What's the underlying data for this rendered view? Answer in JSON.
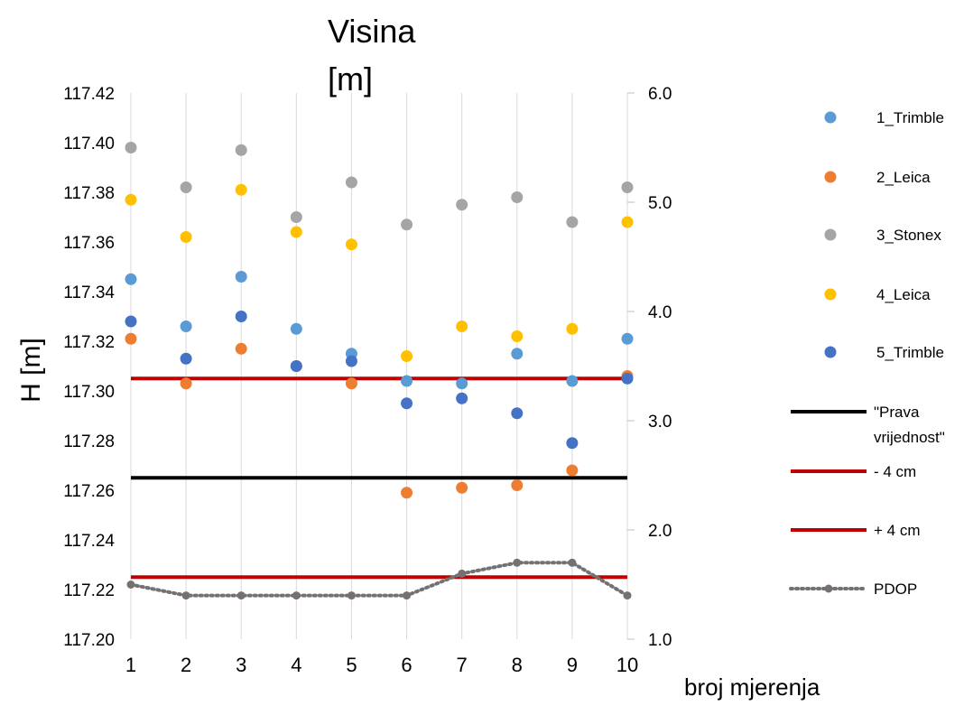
{
  "chart_data": {
    "type": "scatter",
    "title": "Visina [m]",
    "xlabel": "broj mjerenja",
    "ylabel": "H [m]",
    "x": [
      1,
      2,
      3,
      4,
      5,
      6,
      7,
      8,
      9,
      10
    ],
    "xlim": [
      1,
      10
    ],
    "ylim": [
      117.2,
      117.42
    ],
    "y_ticks": [
      "117.42",
      "117.40",
      "117.38",
      "117.36",
      "117.34",
      "117.32",
      "117.30",
      "117.28",
      "117.26",
      "117.24",
      "117.22",
      "117.20"
    ],
    "y2lim": [
      1.0,
      6.0
    ],
    "y2_ticks": [
      "6.0",
      "5.0",
      "4.0",
      "3.0",
      "2.0",
      "1.0"
    ],
    "grid": "vertical",
    "legend_position": "right",
    "series": [
      {
        "name": "1_Trimble",
        "color": "#5B9BD5",
        "kind": "scatter",
        "axis": "left",
        "values": [
          117.345,
          117.326,
          117.346,
          117.325,
          117.315,
          117.304,
          117.303,
          117.315,
          117.304,
          117.321
        ]
      },
      {
        "name": "2_Leica",
        "color": "#ED7D31",
        "kind": "scatter",
        "axis": "left",
        "values": [
          117.321,
          117.303,
          117.317,
          117.31,
          117.303,
          117.259,
          117.261,
          117.262,
          117.268,
          117.306
        ]
      },
      {
        "name": "3_Stonex",
        "color": "#A5A5A5",
        "kind": "scatter",
        "axis": "left",
        "values": [
          117.398,
          117.382,
          117.397,
          117.37,
          117.384,
          117.367,
          117.375,
          117.378,
          117.368,
          117.382
        ]
      },
      {
        "name": "4_Leica",
        "color": "#FFC000",
        "kind": "scatter",
        "axis": "left",
        "values": [
          117.377,
          117.362,
          117.381,
          117.364,
          117.359,
          117.314,
          117.326,
          117.322,
          117.325,
          117.368
        ]
      },
      {
        "name": "5_Trimble",
        "color": "#4472C4",
        "kind": "scatter",
        "axis": "left",
        "values": [
          117.328,
          117.313,
          117.33,
          117.31,
          117.312,
          117.295,
          117.297,
          117.291,
          117.279,
          117.305
        ]
      },
      {
        "name": "\"Prava vrijednost\"",
        "color": "#000000",
        "kind": "hline",
        "axis": "left",
        "value": 117.265
      },
      {
        "name": "- 4 cm",
        "color": "#C00000",
        "kind": "hline",
        "axis": "left",
        "value": 117.225
      },
      {
        "name": "+ 4 cm",
        "color": "#C00000",
        "kind": "hline",
        "axis": "left",
        "value": 117.305
      },
      {
        "name": "PDOP",
        "color": "#767171",
        "kind": "dotted-line",
        "axis": "right",
        "values": [
          1.5,
          1.4,
          1.4,
          1.4,
          1.4,
          1.4,
          1.6,
          1.7,
          1.7,
          1.4
        ]
      }
    ]
  }
}
